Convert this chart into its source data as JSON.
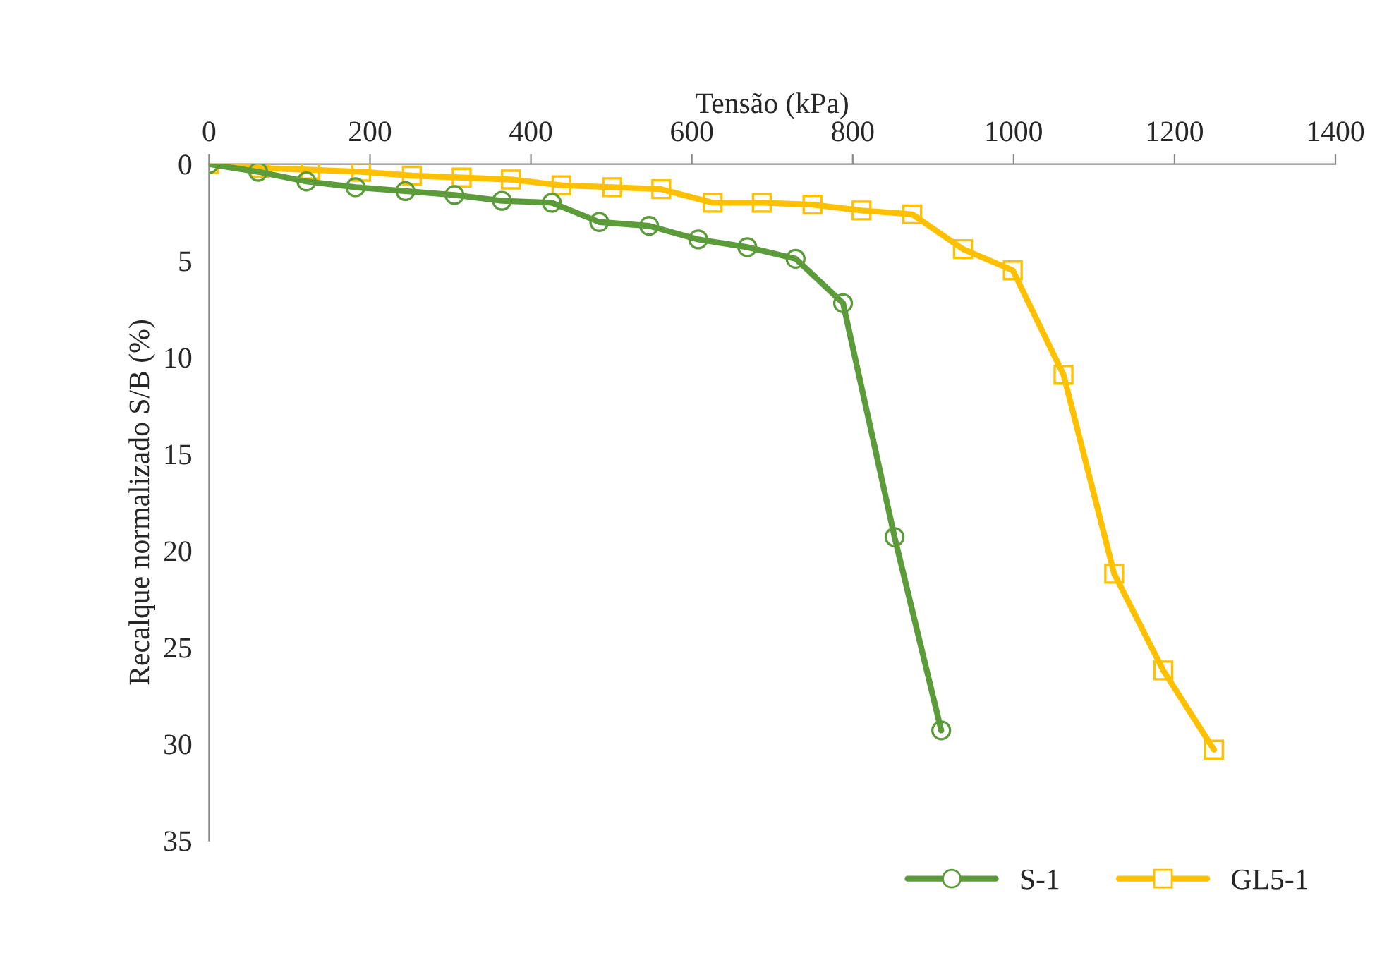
{
  "chart_data": {
    "type": "line",
    "xlabel": "Tensão (kPa)",
    "ylabel": "Recalque normalizado S/B (%)",
    "xlim": [
      0,
      1400
    ],
    "xticks": [
      0,
      200,
      400,
      600,
      800,
      1000,
      1200,
      1400
    ],
    "ylim": [
      35,
      0
    ],
    "yticks": [
      0,
      5,
      10,
      15,
      20,
      25,
      30,
      35
    ],
    "grid": false,
    "legend": "bottom right",
    "series": [
      {
        "name": "S-1",
        "color": "#5b9b3a",
        "marker": "circle",
        "x": [
          0,
          61,
          121,
          182,
          244,
          305,
          364,
          426,
          485,
          547,
          608,
          669,
          729,
          788,
          852,
          910
        ],
        "values": [
          0,
          0.4,
          0.9,
          1.2,
          1.4,
          1.6,
          1.9,
          2.0,
          3.0,
          3.2,
          3.9,
          4.3,
          4.9,
          7.2,
          19.3,
          29.3
        ]
      },
      {
        "name": "GL5-1",
        "color": "#ffc000",
        "marker": "square",
        "x": [
          0,
          63,
          126,
          189,
          252,
          314,
          375,
          438,
          501,
          562,
          626,
          687,
          750,
          811,
          874,
          937,
          999,
          1062,
          1125,
          1186,
          1249
        ],
        "values": [
          0,
          0.2,
          0.3,
          0.4,
          0.6,
          0.7,
          0.8,
          1.1,
          1.2,
          1.3,
          2.0,
          2.0,
          2.1,
          2.4,
          2.6,
          4.4,
          5.5,
          10.9,
          21.2,
          26.2,
          30.3
        ]
      }
    ]
  }
}
